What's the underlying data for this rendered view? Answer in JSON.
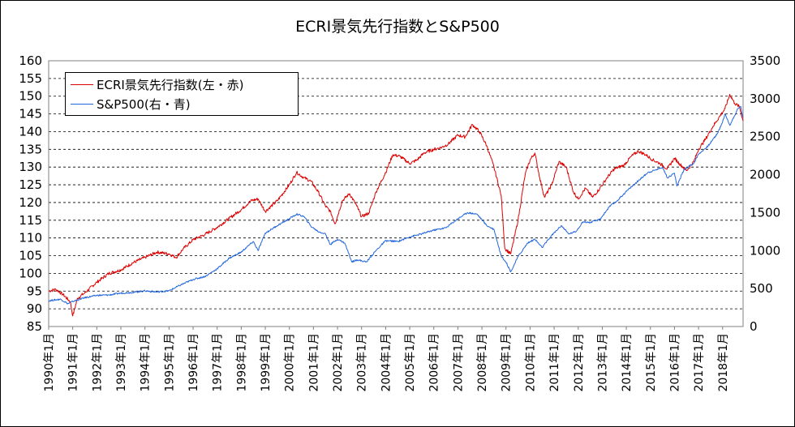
{
  "chart_data": {
    "type": "line",
    "title": "ECRI景気先行指数とS&P500",
    "x_tick_labels": [
      "1990年1月",
      "1991年1月",
      "1992年1月",
      "1993年1月",
      "1994年1月",
      "1995年1月",
      "1996年1月",
      "1997年1月",
      "1998年1月",
      "1999年1月",
      "2000年1月",
      "2001年1月",
      "2002年1月",
      "2003年1月",
      "2004年1月",
      "2005年1月",
      "2006年1月",
      "2007年1月",
      "2008年1月",
      "2009年1月",
      "2010年1月",
      "2011年1月",
      "2012年1月",
      "2013年1月",
      "2014年1月",
      "2015年1月",
      "2016年1月",
      "2017年1月",
      "2018年1月"
    ],
    "x_range": [
      1990.0,
      2018.85
    ],
    "y_left": {
      "range": [
        85,
        160
      ],
      "ticks": [
        85,
        90,
        95,
        100,
        105,
        110,
        115,
        120,
        125,
        130,
        135,
        140,
        145,
        150,
        155,
        160
      ]
    },
    "y_right": {
      "range": [
        0,
        3500
      ],
      "ticks": [
        0,
        500,
        1000,
        1500,
        2000,
        2500,
        3000,
        3500
      ]
    },
    "grid": "horizontal-dashed",
    "legend_position": "top-left",
    "series": [
      {
        "name": "ECRI景気先行指数(左・赤)",
        "axis": "left",
        "color": "#dd0000",
        "x": [
          1990.0,
          1990.3,
          1990.6,
          1990.9,
          1991.0,
          1991.2,
          1991.5,
          1992.0,
          1992.5,
          1993.0,
          1993.5,
          1994.0,
          1994.5,
          1995.0,
          1995.3,
          1995.6,
          1996.0,
          1996.5,
          1997.0,
          1997.5,
          1998.0,
          1998.4,
          1998.7,
          1999.0,
          1999.5,
          2000.0,
          2000.3,
          2000.6,
          2000.9,
          2001.2,
          2001.5,
          2001.7,
          2001.9,
          2002.2,
          2002.5,
          2002.8,
          2003.0,
          2003.3,
          2003.6,
          2004.0,
          2004.3,
          2004.6,
          2005.0,
          2005.3,
          2005.6,
          2006.0,
          2006.3,
          2006.6,
          2007.0,
          2007.3,
          2007.6,
          2007.9,
          2008.2,
          2008.5,
          2008.8,
          2008.95,
          2009.2,
          2009.5,
          2009.8,
          2010.0,
          2010.2,
          2010.4,
          2010.6,
          2010.9,
          2011.2,
          2011.5,
          2011.8,
          2012.0,
          2012.3,
          2012.6,
          2012.9,
          2013.2,
          2013.5,
          2013.9,
          2014.2,
          2014.5,
          2014.8,
          2015.1,
          2015.4,
          2015.7,
          2016.0,
          2016.2,
          2016.5,
          2016.8,
          2017.0,
          2017.3,
          2017.6,
          2017.9,
          2018.1,
          2018.3,
          2018.5,
          2018.7,
          2018.85
        ],
        "y": [
          95.0,
          95.5,
          94.0,
          92.0,
          88.0,
          93.0,
          94.5,
          97.5,
          100.0,
          101.0,
          103.0,
          104.5,
          106.0,
          105.5,
          104.5,
          107.0,
          109.5,
          111.0,
          113.0,
          115.5,
          118.0,
          120.5,
          121.0,
          117.5,
          120.5,
          125.0,
          128.5,
          127.0,
          126.0,
          123.0,
          119.0,
          117.5,
          114.0,
          120.5,
          122.5,
          119.0,
          116.0,
          117.0,
          123.0,
          128.5,
          133.5,
          133.0,
          131.0,
          132.0,
          134.0,
          135.0,
          135.5,
          136.5,
          139.0,
          138.5,
          142.0,
          140.0,
          136.0,
          130.0,
          122.0,
          107.0,
          105.5,
          115.0,
          128.0,
          132.0,
          134.0,
          127.0,
          121.5,
          125.0,
          131.5,
          130.0,
          123.0,
          121.0,
          124.0,
          121.5,
          124.0,
          127.0,
          129.5,
          130.5,
          133.0,
          134.5,
          133.5,
          132.0,
          131.0,
          129.5,
          132.5,
          131.0,
          129.0,
          131.5,
          135.0,
          138.0,
          141.5,
          144.5,
          146.5,
          150.5,
          148.0,
          147.0,
          143.0
        ]
      },
      {
        "name": "S&P500(右・青)",
        "axis": "right",
        "color": "#2266dd",
        "x": [
          1990.0,
          1990.5,
          1990.8,
          1991.0,
          1991.5,
          1992.0,
          1992.5,
          1993.0,
          1993.5,
          1994.0,
          1994.5,
          1995.0,
          1995.5,
          1996.0,
          1996.5,
          1997.0,
          1997.5,
          1998.0,
          1998.5,
          1998.7,
          1999.0,
          1999.5,
          2000.0,
          2000.3,
          2000.6,
          2000.9,
          2001.2,
          2001.5,
          2001.7,
          2002.0,
          2002.3,
          2002.6,
          2002.8,
          2003.2,
          2003.6,
          2004.0,
          2004.5,
          2005.0,
          2005.5,
          2006.0,
          2006.5,
          2007.0,
          2007.4,
          2007.8,
          2008.2,
          2008.5,
          2008.8,
          2009.0,
          2009.2,
          2009.5,
          2009.9,
          2010.2,
          2010.5,
          2010.9,
          2011.3,
          2011.6,
          2011.9,
          2012.2,
          2012.5,
          2012.9,
          2013.3,
          2013.6,
          2014.0,
          2014.5,
          2014.9,
          2015.2,
          2015.5,
          2015.7,
          2016.0,
          2016.1,
          2016.4,
          2016.8,
          2017.0,
          2017.4,
          2017.8,
          2018.0,
          2018.1,
          2018.3,
          2018.6,
          2018.75,
          2018.85
        ],
        "y": [
          340,
          360,
          300,
          330,
          380,
          410,
          415,
          440,
          450,
          470,
          455,
          470,
          550,
          620,
          660,
          760,
          900,
          980,
          1120,
          1000,
          1230,
          1330,
          1420,
          1480,
          1450,
          1320,
          1250,
          1220,
          1080,
          1150,
          1100,
          850,
          880,
          850,
          1000,
          1130,
          1120,
          1180,
          1220,
          1270,
          1300,
          1420,
          1500,
          1480,
          1330,
          1280,
          930,
          850,
          720,
          920,
          1100,
          1150,
          1040,
          1200,
          1330,
          1220,
          1250,
          1380,
          1370,
          1410,
          1580,
          1650,
          1780,
          1920,
          2030,
          2060,
          2100,
          1960,
          2020,
          1850,
          2070,
          2150,
          2270,
          2380,
          2550,
          2700,
          2800,
          2650,
          2850,
          2900,
          2750
        ]
      }
    ]
  }
}
